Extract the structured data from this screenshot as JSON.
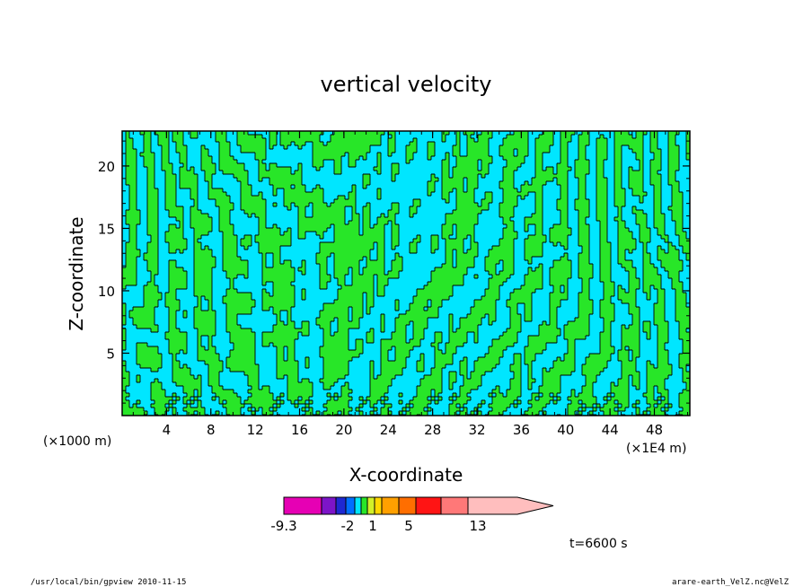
{
  "chart_data": {
    "type": "heatmap",
    "title": "vertical velocity",
    "xlabel": "X-coordinate",
    "ylabel": "Z-coordinate",
    "x_unit_left": "(×1000 m)",
    "x_unit_right": "(×1E4 m)",
    "xlim": [
      0,
      51.2
    ],
    "ylim": [
      0,
      22.8
    ],
    "xticks": [
      "4",
      "8",
      "12",
      "16",
      "20",
      "24",
      "28",
      "32",
      "36",
      "40",
      "44",
      "48"
    ],
    "yticks": [
      "5",
      "10",
      "15",
      "20"
    ],
    "colorbar": {
      "levels": [
        {
          "color": "#e600b4"
        },
        {
          "color": "#7d14c8"
        },
        {
          "color": "#1e28d2"
        },
        {
          "color": "#006eff"
        },
        {
          "color": "#00e6ff"
        },
        {
          "color": "#28e628"
        },
        {
          "color": "#d2f028"
        },
        {
          "color": "#ffd700"
        },
        {
          "color": "#ffa000"
        },
        {
          "color": "#ff6e00"
        },
        {
          "color": "#ff1414"
        },
        {
          "color": "#ff7878"
        },
        {
          "color": "#ffbebe"
        }
      ],
      "labels": [
        "-9.3",
        "-2",
        "1",
        "5",
        "13"
      ]
    },
    "dominant_colors": {
      "negative": "#00e6ff",
      "positive": "#28e628"
    },
    "time_label": "t=6600 s"
  },
  "footer": {
    "left": "/usr/local/bin/gpview  2010-11-15",
    "right": "arare-earth_VelZ.nc@VelZ"
  }
}
